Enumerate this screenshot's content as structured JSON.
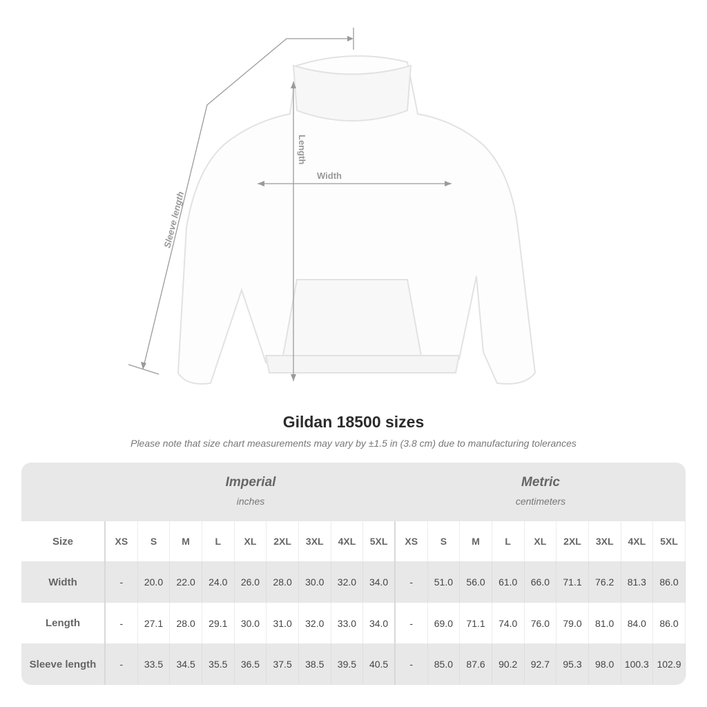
{
  "diagram": {
    "sleeve_label": "Sleeve length",
    "length_label": "Length",
    "width_label": "Width"
  },
  "title": "Gildan 18500 sizes",
  "subtitle": "Please note that size chart measurements may vary by ±1.5 in (3.8 cm) due to manufacturing tolerances",
  "imperial": {
    "name": "Imperial",
    "unit": "inches"
  },
  "metric": {
    "name": "Metric",
    "unit": "centimeters"
  },
  "size_label": "Size",
  "sizes": [
    "XS",
    "S",
    "M",
    "L",
    "XL",
    "2XL",
    "3XL",
    "4XL",
    "5XL"
  ],
  "rows": [
    {
      "label": "Width",
      "imperial": [
        "-",
        "20.0",
        "22.0",
        "24.0",
        "26.0",
        "28.0",
        "30.0",
        "32.0",
        "34.0"
      ],
      "metric": [
        "-",
        "51.0",
        "56.0",
        "61.0",
        "66.0",
        "71.1",
        "76.2",
        "81.3",
        "86.0"
      ]
    },
    {
      "label": "Length",
      "imperial": [
        "-",
        "27.1",
        "28.0",
        "29.1",
        "30.0",
        "31.0",
        "32.0",
        "33.0",
        "34.0"
      ],
      "metric": [
        "-",
        "69.0",
        "71.1",
        "74.0",
        "76.0",
        "79.0",
        "81.0",
        "84.0",
        "86.0"
      ]
    },
    {
      "label": "Sleeve length",
      "imperial": [
        "-",
        "33.5",
        "34.5",
        "35.5",
        "36.5",
        "37.5",
        "38.5",
        "39.5",
        "40.5"
      ],
      "metric": [
        "-",
        "85.0",
        "87.6",
        "90.2",
        "92.7",
        "95.3",
        "98.0",
        "100.3",
        "102.9"
      ]
    }
  ]
}
